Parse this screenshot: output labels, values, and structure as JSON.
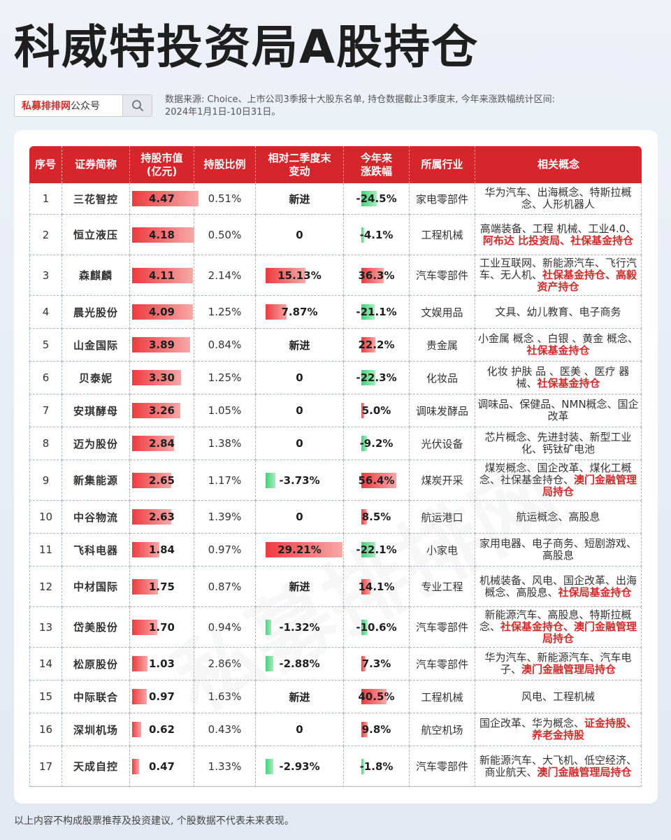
{
  "title": "科威特投资局A股持仓",
  "brand": {
    "red": "私募排排网",
    "rest": "公众号",
    "search_icon": "search-icon"
  },
  "source_note": "数据来源: Choice、上市公司3季报十大股东名单, 持仓数据截止3季度末, 今年来涨跌幅统计区间: 2024年1月1日-10日31日。",
  "watermark": "私募排排网",
  "colors": {
    "header": "#d7262b",
    "highlight": "#d32b2b",
    "up": "#ee3b3f",
    "down": "#44d27b"
  },
  "headers": [
    "序号",
    "证券简称",
    "持股市值\n(亿元)",
    "持股比例",
    "相对二季度末\n变动",
    "今年来\n涨跌幅",
    "所属行业",
    "相关概念"
  ],
  "rows": [
    {
      "no": "1",
      "name": "三花智控",
      "mv": "4.47",
      "mv_n": 4.47,
      "ratio": "0.51%",
      "chg": "新进",
      "chg_n": null,
      "ytd": "-24.5%",
      "ytd_n": -24.5,
      "ind": "家电零部件",
      "concept": [
        [
          "华为汽车、出海概念、特斯拉概念、人形机器人",
          false
        ]
      ]
    },
    {
      "no": "2",
      "name": "恒立液压",
      "mv": "4.18",
      "mv_n": 4.18,
      "ratio": "0.50%",
      "chg": "0",
      "chg_n": 0,
      "ytd": "-4.1%",
      "ytd_n": -4.1,
      "ind": "工程机械",
      "concept": [
        [
          "高端装备、工程 机械、工业4.0、",
          false
        ],
        [
          "阿布达 比投资局、社保基金持仓",
          true
        ]
      ]
    },
    {
      "no": "3",
      "name": "森麒麟",
      "mv": "4.11",
      "mv_n": 4.11,
      "ratio": "2.14%",
      "chg": "15.13%",
      "chg_n": 15.13,
      "ytd": "36.3%",
      "ytd_n": 36.3,
      "ind": "汽车零部件",
      "concept": [
        [
          "工业互联网、新能源汽车、飞行汽车、无人机、",
          false
        ],
        [
          "社保基金持仓、高毅资产持仓",
          true
        ]
      ]
    },
    {
      "no": "4",
      "name": "晨光股份",
      "mv": "4.09",
      "mv_n": 4.09,
      "ratio": "1.25%",
      "chg": "7.87%",
      "chg_n": 7.87,
      "ytd": "-21.1%",
      "ytd_n": -21.1,
      "ind": "文娱用品",
      "concept": [
        [
          "文具、幼儿教育、电子商务",
          false
        ]
      ]
    },
    {
      "no": "5",
      "name": "山金国际",
      "mv": "3.89",
      "mv_n": 3.89,
      "ratio": "0.84%",
      "chg": "新进",
      "chg_n": null,
      "ytd": "22.2%",
      "ytd_n": 22.2,
      "ind": "贵金属",
      "concept": [
        [
          "小金属 概念 、白银 、黄金 概念、",
          false
        ],
        [
          "社保基金持仓",
          true
        ]
      ]
    },
    {
      "no": "6",
      "name": "贝泰妮",
      "mv": "3.30",
      "mv_n": 3.3,
      "ratio": "1.25%",
      "chg": "0",
      "chg_n": 0,
      "ytd": "-22.3%",
      "ytd_n": -22.3,
      "ind": "化妆品",
      "concept": [
        [
          "化妆 护肤 品 、医美 、医疗 器械、",
          false
        ],
        [
          "社保基金持仓",
          true
        ]
      ]
    },
    {
      "no": "7",
      "name": "安琪酵母",
      "mv": "3.26",
      "mv_n": 3.26,
      "ratio": "1.05%",
      "chg": "0",
      "chg_n": 0,
      "ytd": "5.0%",
      "ytd_n": 5.0,
      "ind": "调味发酵品",
      "concept": [
        [
          "调味品、保健品、NMN概念、国企改革",
          false
        ]
      ]
    },
    {
      "no": "8",
      "name": "迈为股份",
      "mv": "2.84",
      "mv_n": 2.84,
      "ratio": "1.38%",
      "chg": "0",
      "chg_n": 0,
      "ytd": "-9.2%",
      "ytd_n": -9.2,
      "ind": "光伏设备",
      "concept": [
        [
          "芯片概念、先进封装、新型工业化、钙钛矿电池",
          false
        ]
      ]
    },
    {
      "no": "9",
      "name": "新集能源",
      "mv": "2.65",
      "mv_n": 2.65,
      "ratio": "1.17%",
      "chg": "-3.73%",
      "chg_n": -3.73,
      "ytd": "56.4%",
      "ytd_n": 56.4,
      "ind": "煤炭开采",
      "concept": [
        [
          "煤炭概念、国企改革、煤化工概念、社保基金持仓、",
          false
        ],
        [
          "澳门金融管理局持仓",
          true
        ]
      ]
    },
    {
      "no": "10",
      "name": "中谷物流",
      "mv": "2.63",
      "mv_n": 2.63,
      "ratio": "1.39%",
      "chg": "0",
      "chg_n": 0,
      "ytd": "8.5%",
      "ytd_n": 8.5,
      "ind": "航运港口",
      "concept": [
        [
          "航运概念、高股息",
          false
        ]
      ]
    },
    {
      "no": "11",
      "name": "飞科电器",
      "mv": "1.84",
      "mv_n": 1.84,
      "ratio": "0.97%",
      "chg": "29.21%",
      "chg_n": 29.21,
      "ytd": "-22.1%",
      "ytd_n": -22.1,
      "ind": "小家电",
      "concept": [
        [
          "家用电器、电子商务、短剧游戏、高股息",
          false
        ]
      ]
    },
    {
      "no": "12",
      "name": "中材国际",
      "mv": "1.75",
      "mv_n": 1.75,
      "ratio": "0.87%",
      "chg": "新进",
      "chg_n": null,
      "ytd": "14.1%",
      "ytd_n": 14.1,
      "ind": "专业工程",
      "concept": [
        [
          "机械装备、风电、国企改革、出海概念、高股息、",
          false
        ],
        [
          "社保局基金持仓",
          true
        ]
      ]
    },
    {
      "no": "13",
      "name": "岱美股份",
      "mv": "1.70",
      "mv_n": 1.7,
      "ratio": "0.94%",
      "chg": "-1.32%",
      "chg_n": -1.32,
      "ytd": "-10.6%",
      "ytd_n": -10.6,
      "ind": "汽车零部件",
      "concept": [
        [
          "新能源汽车、高股息、特斯拉概念、",
          false
        ],
        [
          "社保基金持仓、澳门金融管理局持仓",
          true
        ]
      ]
    },
    {
      "no": "14",
      "name": "松原股份",
      "mv": "1.03",
      "mv_n": 1.03,
      "ratio": "2.86%",
      "chg": "-2.88%",
      "chg_n": -2.88,
      "ytd": "7.3%",
      "ytd_n": 7.3,
      "ind": "汽车零部件",
      "concept": [
        [
          "华为汽车、新能源汽车、汽车电子、",
          false
        ],
        [
          "澳门金融管理局持仓",
          true
        ]
      ]
    },
    {
      "no": "15",
      "name": "中际联合",
      "mv": "0.97",
      "mv_n": 0.97,
      "ratio": "1.63%",
      "chg": "新进",
      "chg_n": null,
      "ytd": "40.5%",
      "ytd_n": 40.5,
      "ind": "工程机械",
      "concept": [
        [
          "风电、工程机械",
          false
        ]
      ]
    },
    {
      "no": "16",
      "name": "深圳机场",
      "mv": "0.62",
      "mv_n": 0.62,
      "ratio": "0.43%",
      "chg": "0",
      "chg_n": 0,
      "ytd": "9.8%",
      "ytd_n": 9.8,
      "ind": "航空机场",
      "concept": [
        [
          "国企改革、华为概念、",
          false
        ],
        [
          "证金持股、养老金持股",
          true
        ]
      ]
    },
    {
      "no": "17",
      "name": "天成自控",
      "mv": "0.47",
      "mv_n": 0.47,
      "ratio": "1.33%",
      "chg": "-2.93%",
      "chg_n": -2.93,
      "ytd": "-1.8%",
      "ytd_n": -1.8,
      "ind": "汽车零部件",
      "concept": [
        [
          "新能源汽车、大飞机、低空经济、商业航天、",
          false
        ],
        [
          "澳门金融管理局持仓",
          true
        ]
      ]
    }
  ],
  "disclaimer": "以上内容不构成股票推荐及投资建议, 个股数据不代表未来表现。"
}
